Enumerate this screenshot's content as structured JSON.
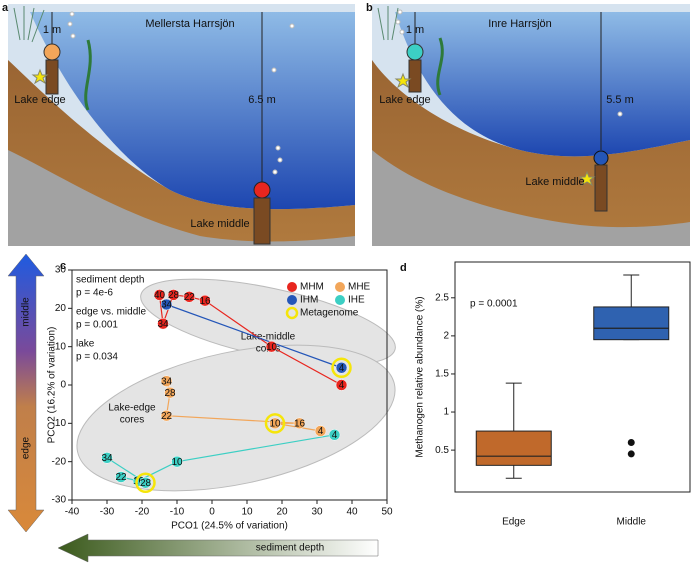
{
  "illustrations": [
    {
      "label": "a",
      "title": "Mellersta Harrsjön",
      "edge_depth": "1 m",
      "middle_depth": "6.5 m",
      "edge_label": "Lake edge",
      "middle_label": "Lake middle"
    },
    {
      "label": "b",
      "title": "Inre Harrsjön",
      "edge_depth": "1 m",
      "middle_depth": "5.5 m",
      "edge_label": "Lake edge",
      "middle_label": "Lake middle"
    }
  ],
  "chart_data": [
    {
      "type": "scatter",
      "panel": "c",
      "xlabel": "PCO1 (24.5% of variation)",
      "ylabel": "PCO2 (16.2% of variation)",
      "xlim": [
        -40,
        50
      ],
      "xticks": [
        -40,
        -30,
        -20,
        -10,
        0,
        10,
        20,
        30,
        40,
        50
      ],
      "ylim": [
        -30,
        30
      ],
      "yticks": [
        -30,
        -20,
        -10,
        0,
        10,
        20,
        30
      ],
      "annotations": [
        "sediment depth",
        "p = 4e-6",
        "edge vs. middle",
        "p = 0.001",
        "lake",
        "p = 0.034"
      ],
      "groups": [
        [
          "Lake-middle",
          "cores"
        ],
        [
          "Lake-edge",
          "cores"
        ]
      ],
      "arrows": {
        "vertical": [
          "middle",
          "edge"
        ],
        "horizontal": "sediment depth"
      },
      "highlight": {
        "name": "Metagenome",
        "color": "#f5e50a"
      },
      "series": [
        {
          "name": "MHM",
          "color": "#e8261f",
          "depths": [
            4,
            10,
            16,
            22,
            28,
            34,
            40
          ],
          "x": [
            37,
            17,
            -2,
            -6.5,
            -11,
            -14,
            -15
          ],
          "y": [
            0,
            10,
            22,
            23,
            23.5,
            16,
            23.5
          ],
          "metagenome": [
            false,
            false,
            false,
            false,
            false,
            false,
            false
          ]
        },
        {
          "name": "MHE",
          "color": "#f2a65a",
          "depths": [
            4,
            10,
            16,
            22,
            28,
            34
          ],
          "x": [
            31,
            18,
            25,
            -13,
            -12,
            -13
          ],
          "y": [
            -12,
            -10,
            -10,
            -8,
            -2,
            1
          ],
          "metagenome": [
            false,
            true,
            false,
            false,
            false,
            false
          ]
        },
        {
          "name": "IHM",
          "color": "#2456b8",
          "depths": [
            4,
            34
          ],
          "x": [
            37,
            -13
          ],
          "y": [
            4.5,
            21
          ],
          "metagenome": [
            true,
            false
          ]
        },
        {
          "name": "IHE",
          "color": "#3ccfc4",
          "depths": [
            4,
            10,
            16,
            22,
            28,
            34
          ],
          "x": [
            35,
            -10,
            -21,
            -26,
            -19,
            -30
          ],
          "y": [
            -13,
            -20,
            -25,
            -24,
            -25.5,
            -19
          ],
          "metagenome": [
            false,
            false,
            false,
            false,
            true,
            false
          ]
        }
      ]
    },
    {
      "type": "box",
      "panel": "d",
      "ylabel": "Methanogen relative abundance (%)",
      "annotation": "p = 0.0001",
      "ylim": [
        -0.05,
        2.97
      ],
      "yticks": [
        0.5,
        1,
        1.5,
        2,
        2.5
      ],
      "categories": [
        "Edge",
        "Middle"
      ],
      "colors": [
        "#c0692b",
        "#2f62b0"
      ],
      "boxes": [
        {
          "min": 0.13,
          "q1": 0.3,
          "median": 0.42,
          "q3": 0.75,
          "max": 1.38,
          "outliers": []
        },
        {
          "min": 1.95,
          "q1": 1.95,
          "median": 2.1,
          "q3": 2.38,
          "max": 2.8,
          "outliers": [
            0.6,
            0.45
          ]
        }
      ]
    }
  ]
}
